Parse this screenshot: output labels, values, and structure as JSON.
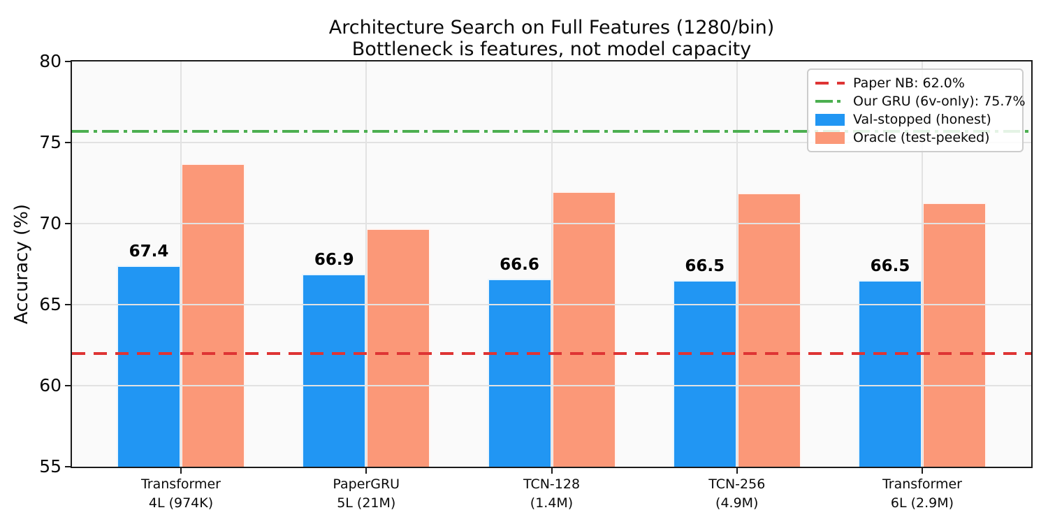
{
  "chart_data": {
    "type": "bar",
    "title": "Architecture Search on Full Features (1280/bin)",
    "subtitle": "Bottleneck is features, not model capacity",
    "ylabel": "Accuracy (%)",
    "ylim": [
      55,
      80
    ],
    "yticks": [
      55,
      60,
      65,
      70,
      75,
      80
    ],
    "grid": true,
    "plot_background": "#fafafa",
    "gridline_color": "#e2e2e2",
    "legend_position": "upper right",
    "categories": [
      {
        "line1": "Transformer",
        "line2": "4L (974K)"
      },
      {
        "line1": "PaperGRU",
        "line2": "5L (21M)"
      },
      {
        "line1": "TCN-128",
        "line2": "(1.4M)"
      },
      {
        "line1": "TCN-256",
        "line2": "(4.9M)"
      },
      {
        "line1": "Transformer",
        "line2": "6L (2.9M)"
      }
    ],
    "series": [
      {
        "name": "Val-stopped (honest)",
        "color": "#2196F3",
        "values": [
          67.4,
          66.9,
          66.6,
          66.5,
          66.5
        ],
        "value_labels": [
          "67.4",
          "66.9",
          "66.6",
          "66.5",
          "66.5"
        ]
      },
      {
        "name": "Oracle (test-peeked)",
        "color": "#FB9878",
        "values": [
          73.7,
          69.7,
          72.0,
          71.9,
          71.3
        ],
        "value_labels": null
      }
    ],
    "reference_lines": [
      {
        "name": "Paper NB: 62.0%",
        "value": 62.0,
        "color": "#DE3434",
        "dash": "dashed"
      },
      {
        "name": "Our GRU (6v-only): 75.7%",
        "value": 75.7,
        "color": "#4CAF50",
        "dash": "dashdot"
      }
    ]
  }
}
